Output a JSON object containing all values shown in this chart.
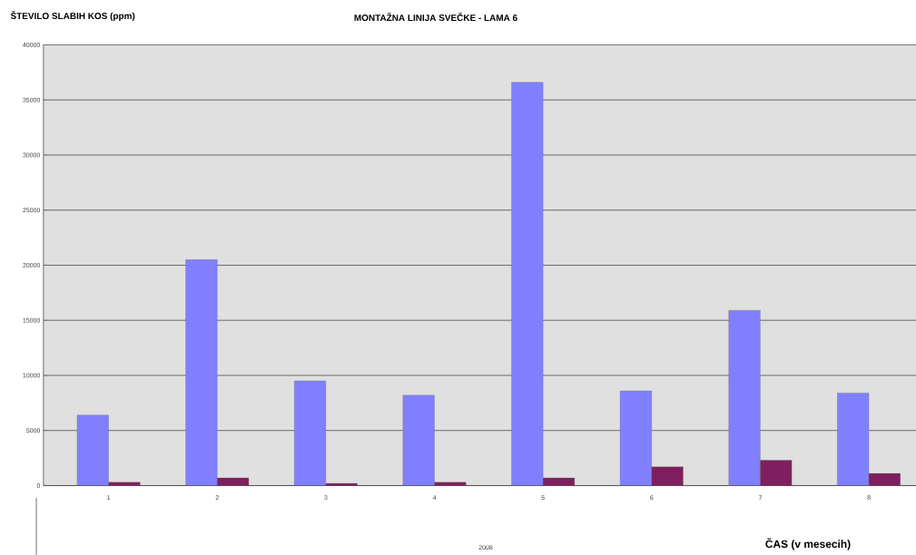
{
  "chart_data": {
    "type": "bar",
    "title": "MONTAŽNA LINIJA SVEČKE - LAMA 6",
    "xlabel": "ČAS (v mesecih)",
    "ylabel": "ŠTEVILO SLABIH KOS (ppm)",
    "categories": [
      "1",
      "2",
      "3",
      "4",
      "5",
      "6",
      "7",
      "8"
    ],
    "series": [
      {
        "color": "#8080ff",
        "values": [
          6400,
          20500,
          9500,
          8200,
          36600,
          8600,
          15900,
          8400
        ]
      },
      {
        "color": "#7f1f5f",
        "values": [
          300,
          700,
          200,
          300,
          700,
          1700,
          2300,
          1100
        ]
      }
    ],
    "ylim": [
      0,
      40000
    ],
    "yticks": [
      0,
      5000,
      10000,
      15000,
      20000,
      25000,
      30000,
      35000,
      40000
    ],
    "grid": "y",
    "annotations": [
      "2008"
    ]
  }
}
